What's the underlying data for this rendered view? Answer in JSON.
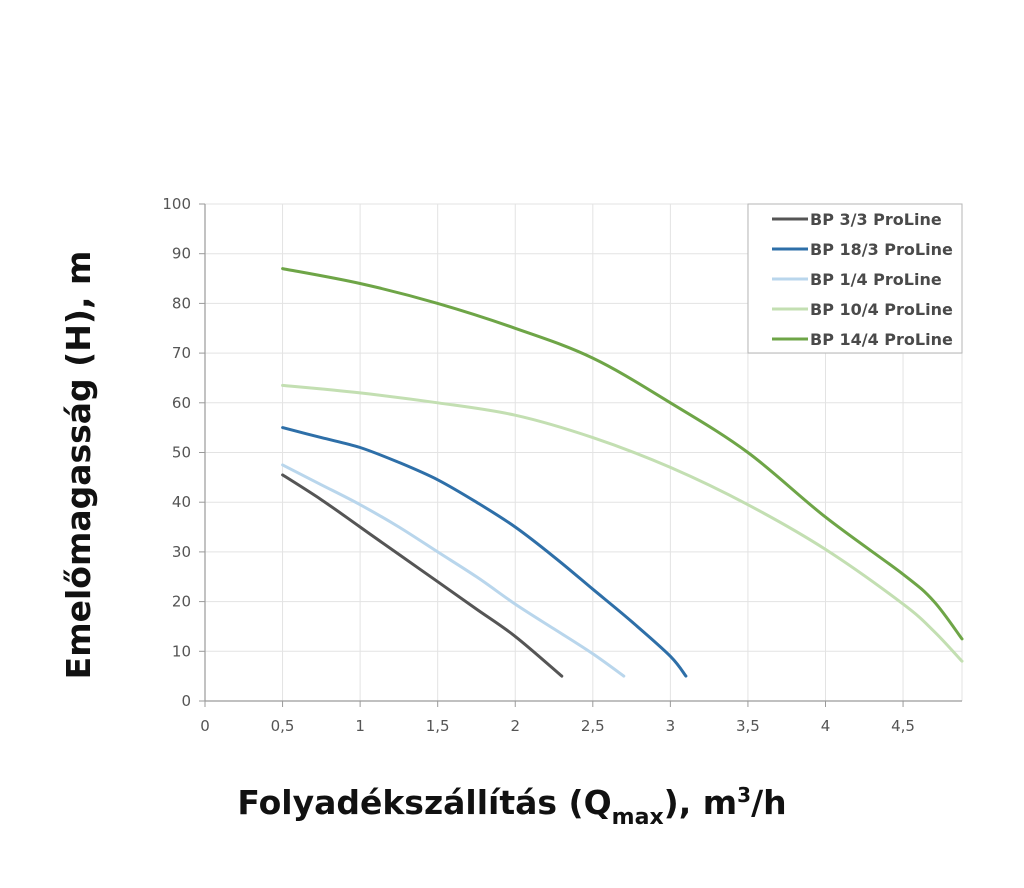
{
  "chart_data": {
    "type": "line",
    "xlabel": {
      "pre": "Folyadékszállítás (Q",
      "sub": "max",
      "mid": "), m",
      "sup": "3",
      "post": "/h"
    },
    "ylabel": "Emelőmagasság (H), m",
    "xlim": [
      0,
      4.88
    ],
    "ylim": [
      0,
      100
    ],
    "x_ticks": [
      "0",
      "0,5",
      "1",
      "1,5",
      "2",
      "2,5",
      "3",
      "3,5",
      "4",
      "4,5"
    ],
    "x_tick_values": [
      0,
      0.5,
      1,
      1.5,
      2,
      2.5,
      3,
      3.5,
      4,
      4.5
    ],
    "y_ticks": [
      "0",
      "10",
      "20",
      "30",
      "40",
      "50",
      "60",
      "70",
      "80",
      "90",
      "100"
    ],
    "y_tick_values": [
      0,
      10,
      20,
      30,
      40,
      50,
      60,
      70,
      80,
      90,
      100
    ],
    "grid": true,
    "legend_position": "top-right",
    "series": [
      {
        "name": "BP 3/3 ProLine",
        "color": "#555555",
        "x": [
          0.5,
          0.75,
          1.0,
          1.25,
          1.5,
          1.75,
          2.0,
          2.3
        ],
        "y": [
          45.5,
          40.5,
          35,
          29.5,
          24,
          18.5,
          13,
          5
        ]
      },
      {
        "name": "BP 18/3 ProLine",
        "color": "#2e6fa8",
        "x": [
          0.5,
          0.75,
          1.0,
          1.25,
          1.5,
          1.75,
          2.0,
          2.25,
          2.5,
          2.75,
          3.0,
          3.1
        ],
        "y": [
          55,
          53,
          51,
          48,
          44.5,
          40,
          35,
          29,
          22.5,
          16,
          9,
          5
        ]
      },
      {
        "name": "BP 1/4 ProLine",
        "color": "#b9d6ec",
        "x": [
          0.5,
          0.75,
          1.0,
          1.25,
          1.5,
          1.75,
          2.0,
          2.25,
          2.5,
          2.7
        ],
        "y": [
          47.5,
          43.5,
          39.5,
          35,
          30,
          25,
          19.5,
          14.5,
          9.5,
          5
        ]
      },
      {
        "name": "BP 10/4 ProLine",
        "color": "#c3dfb2",
        "x": [
          0.5,
          1.0,
          1.5,
          2.0,
          2.5,
          3.0,
          3.5,
          4.0,
          4.5,
          4.7,
          4.88
        ],
        "y": [
          63.5,
          62,
          60,
          57.5,
          53,
          47,
          39.5,
          30.5,
          19.5,
          14,
          8
        ]
      },
      {
        "name": "BP 14/4 ProLine",
        "color": "#6ea547",
        "x": [
          0.5,
          1.0,
          1.5,
          2.0,
          2.5,
          3.0,
          3.5,
          4.0,
          4.5,
          4.7,
          4.88
        ],
        "y": [
          87,
          84,
          80,
          75,
          69,
          60,
          50,
          37,
          25.5,
          20,
          12.5
        ]
      }
    ]
  }
}
